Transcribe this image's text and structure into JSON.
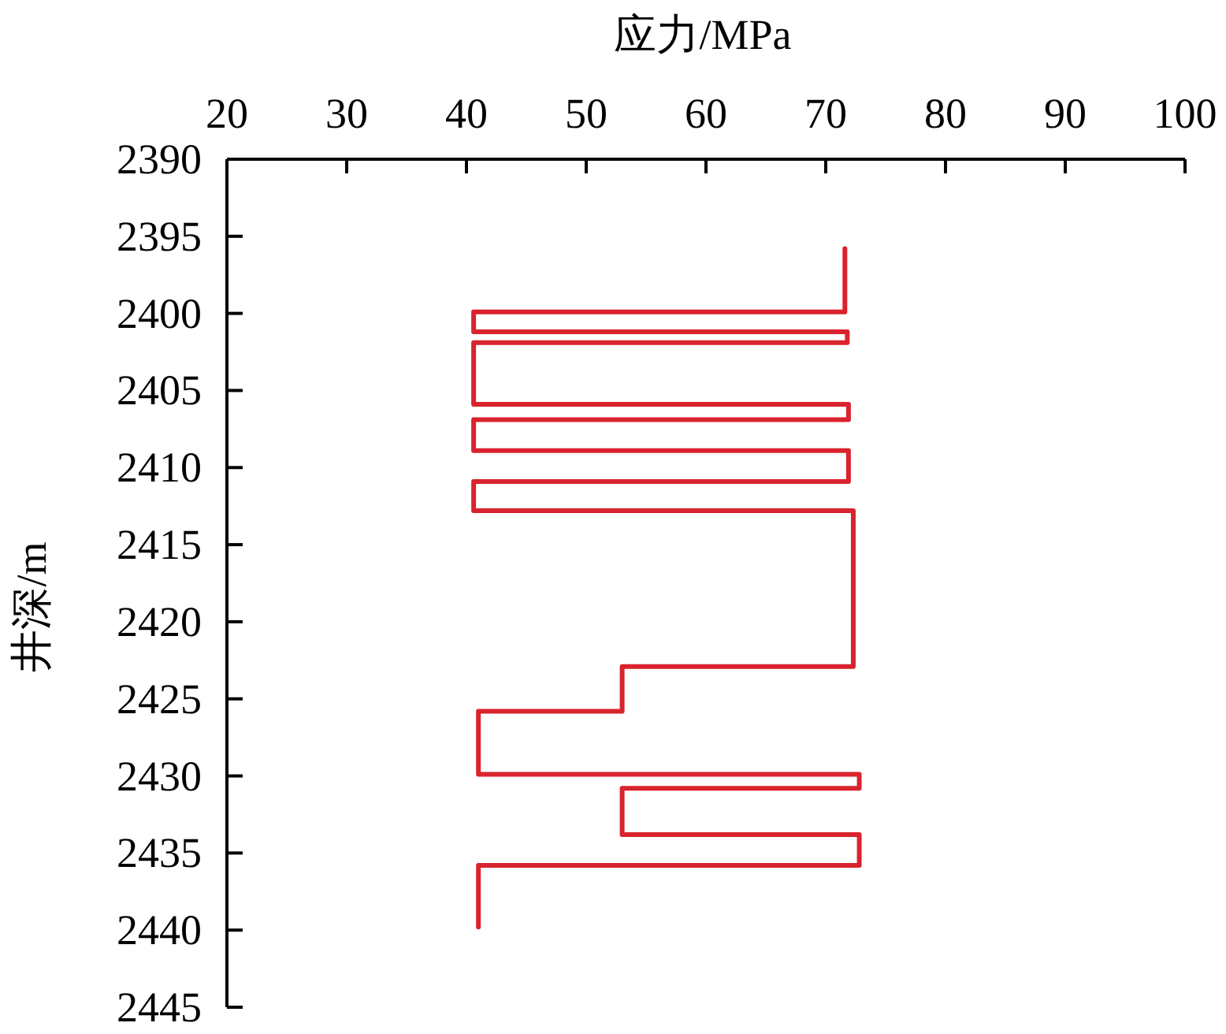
{
  "chart_data": {
    "type": "line",
    "xlabel": "应力/MPa",
    "ylabel": "井深/m",
    "xlim": [
      20,
      100
    ],
    "xticks": [
      20,
      30,
      40,
      50,
      60,
      70,
      80,
      90,
      100
    ],
    "ylim": [
      2445,
      2390
    ],
    "yticks": [
      2390,
      2395,
      2400,
      2405,
      2410,
      2415,
      2420,
      2425,
      2430,
      2435,
      2440,
      2445
    ],
    "series": [
      {
        "color": "#d9232e",
        "x": [
          71.6,
          71.6,
          40.6,
          40.6,
          71.8,
          71.8,
          40.6,
          40.6,
          71.9,
          71.9,
          40.6,
          40.6,
          71.9,
          71.9,
          40.6,
          40.6,
          72.3,
          72.3,
          53.0,
          53.0,
          41.0,
          41.0,
          72.8,
          72.8,
          53.0,
          53.0,
          72.8,
          72.8,
          41.0,
          41.0
        ],
        "values": [
          2395.8,
          2399.9,
          2399.9,
          2401.2,
          2401.2,
          2401.9,
          2401.9,
          2405.9,
          2405.9,
          2406.9,
          2406.9,
          2408.9,
          2408.9,
          2410.9,
          2410.9,
          2412.8,
          2412.8,
          2422.9,
          2422.9,
          2425.8,
          2425.8,
          2429.9,
          2429.9,
          2430.8,
          2430.8,
          2433.8,
          2433.8,
          2435.8,
          2435.8,
          2439.8
        ]
      }
    ]
  }
}
